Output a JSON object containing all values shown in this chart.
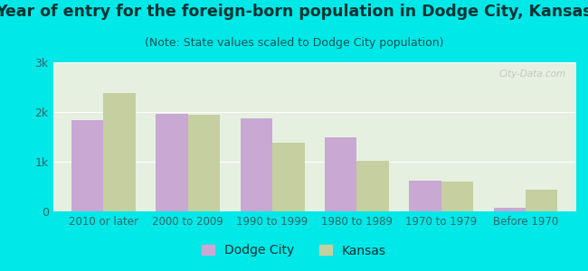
{
  "title": "Year of entry for the foreign-born population in Dodge City, Kansas",
  "subtitle": "(Note: State values scaled to Dodge City population)",
  "categories": [
    "2010 or later",
    "2000 to 2009",
    "1990 to 1999",
    "1980 to 1989",
    "1970 to 1979",
    "Before 1970"
  ],
  "dodge_city": [
    1830,
    1960,
    1870,
    1500,
    620,
    75
  ],
  "kansas": [
    2380,
    1950,
    1380,
    1020,
    600,
    440
  ],
  "dodge_city_color": "#c9a8d4",
  "kansas_color": "#c5cfa0",
  "background_outer": "#00e8e8",
  "background_inner": "#e6f0e0",
  "ylim": [
    0,
    3000
  ],
  "yticks": [
    0,
    1000,
    2000,
    3000
  ],
  "ytick_labels": [
    "0",
    "1k",
    "2k",
    "3k"
  ],
  "bar_width": 0.38,
  "title_fontsize": 12.5,
  "subtitle_fontsize": 9,
  "legend_fontsize": 10,
  "title_color": "#003333",
  "subtitle_color": "#005555",
  "tick_color": "#336666",
  "watermark": "City-Data.com"
}
